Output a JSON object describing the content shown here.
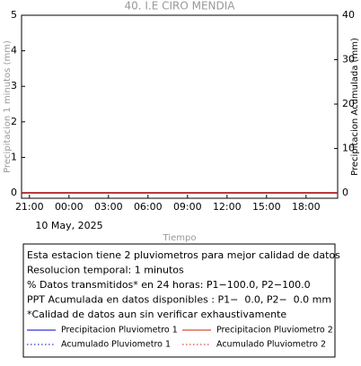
{
  "chart_data": {
    "type": "line",
    "title": "40. I.E CIRO MENDIA",
    "ylabel": "Precipitacion 1 minutos (mm)",
    "y2label": "Precipitacion Acumulada (mm)",
    "xlabel": "Tiempo",
    "date_label": "10 May, 2025",
    "xlim": [
      -0.6,
      23.4
    ],
    "xticks": [
      {
        "value": 0,
        "label": "21:00"
      },
      {
        "value": 3,
        "label": "00:00"
      },
      {
        "value": 6,
        "label": "03:00"
      },
      {
        "value": 9,
        "label": "06:00"
      },
      {
        "value": 12,
        "label": "09:00"
      },
      {
        "value": 15,
        "label": "12:00"
      },
      {
        "value": 18,
        "label": "15:00"
      },
      {
        "value": 21,
        "label": "18:00"
      }
    ],
    "ylim": [
      -0.15,
      5
    ],
    "yticks": [
      0,
      1,
      2,
      3,
      4,
      5
    ],
    "y2lim": [
      -1.2,
      40
    ],
    "y2ticks": [
      0,
      10,
      20,
      30,
      40
    ],
    "x": [
      -0.6,
      23.4
    ],
    "series": [
      {
        "name": "Precipitacion Pluviometro 1",
        "color": "#0000cc",
        "linestyle": "solid",
        "values": [
          0,
          0
        ]
      },
      {
        "name": "Precipitacion Pluviometro 2",
        "color": "#cc2200",
        "linestyle": "solid",
        "values": [
          0,
          0
        ]
      },
      {
        "name": "Acumulado Pluviometro 1",
        "color": "#0000cc",
        "linestyle": "dotted",
        "axis": "y2",
        "values": [
          0,
          0
        ]
      },
      {
        "name": "Acumulado Pluviometro 2",
        "color": "#cc2200",
        "linestyle": "dotted",
        "axis": "y2",
        "values": [
          0,
          0
        ]
      }
    ],
    "info_box": [
      "Esta estacion tiene 2 pluviometros para mejor calidad de datos",
      "Resolucion temporal: 1 minutos",
      "% Datos transmitidos* en 24 horas: P1−100.0, P2−100.0",
      "PPT Acumulada en datos disponibles : P1−  0.0, P2−  0.0 mm",
      "*Calidad de datos aun sin verificar exhaustivamente"
    ]
  }
}
